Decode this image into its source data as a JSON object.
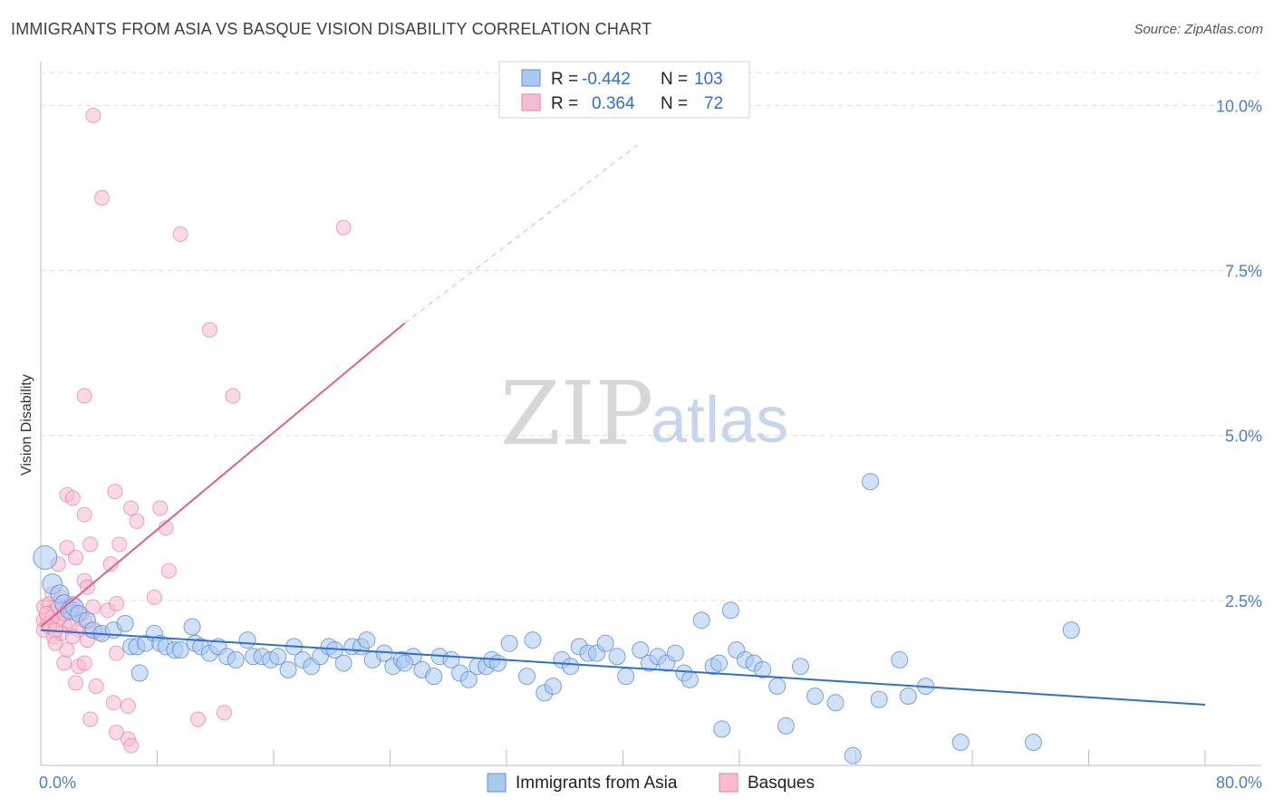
{
  "title": "IMMIGRANTS FROM ASIA VS BASQUE VISION DISABILITY CORRELATION CHART",
  "source": "Source: ZipAtlas.com",
  "watermark": {
    "zip": "ZIP",
    "atlas": "atlas"
  },
  "colors": {
    "blue_fill": "#a9c8f2",
    "blue_stroke": "#5a8fd8",
    "blue_line": "#2e6fd0",
    "pink_fill": "#f7bcd0",
    "pink_stroke": "#e7809f",
    "pink_line": "#e0608a",
    "grid": "#dcdcdc",
    "axis_text": "#4a7fcf"
  },
  "legend": {
    "rows": [
      {
        "r_label": "R =",
        "r_value": "-0.442",
        "n_label": "N =",
        "n_value": "103",
        "series": "blue"
      },
      {
        "r_label": "R =",
        "r_value": "0.364",
        "n_label": "N =",
        "n_value": "72",
        "series": "pink"
      }
    ]
  },
  "chart_data": {
    "type": "scatter",
    "title": "IMMIGRANTS FROM ASIA VS BASQUE VISION DISABILITY CORRELATION CHART",
    "xlabel": "",
    "ylabel": "Vision Disability",
    "xlim": [
      0,
      80
    ],
    "ylim": [
      0,
      10.5
    ],
    "x_tick_labels": [
      "0.0%",
      "80.0%"
    ],
    "y_ticks": [
      2.5,
      5.0,
      7.5,
      10.0
    ],
    "y_tick_labels": [
      "2.5%",
      "5.0%",
      "7.5%",
      "10.0%"
    ],
    "grid": true,
    "legend_position": "top-center",
    "series": [
      {
        "name": "Immigrants from Asia",
        "color": "blue",
        "r": -0.442,
        "n": 103,
        "trend": {
          "x0": 0,
          "y0": 2.05,
          "x1": 80,
          "y1": 0.92
        },
        "points": [
          [
            0.3,
            3.15
          ],
          [
            0.8,
            2.75
          ],
          [
            1.3,
            2.6
          ],
          [
            1.6,
            2.45
          ],
          [
            2.0,
            2.35
          ],
          [
            2.3,
            2.4
          ],
          [
            2.6,
            2.3
          ],
          [
            3.2,
            2.2
          ],
          [
            3.6,
            2.05
          ],
          [
            4.2,
            2.0
          ],
          [
            5.0,
            2.05
          ],
          [
            5.8,
            2.15
          ],
          [
            6.2,
            1.8
          ],
          [
            6.6,
            1.8
          ],
          [
            7.2,
            1.85
          ],
          [
            7.8,
            2.0
          ],
          [
            8.2,
            1.85
          ],
          [
            8.6,
            1.8
          ],
          [
            9.2,
            1.75
          ],
          [
            9.6,
            1.75
          ],
          [
            10.4,
            2.1
          ],
          [
            10.6,
            1.85
          ],
          [
            11.0,
            1.8
          ],
          [
            11.6,
            1.7
          ],
          [
            12.2,
            1.8
          ],
          [
            12.8,
            1.65
          ],
          [
            13.4,
            1.6
          ],
          [
            14.2,
            1.9
          ],
          [
            14.6,
            1.65
          ],
          [
            15.2,
            1.65
          ],
          [
            15.8,
            1.6
          ],
          [
            16.3,
            1.65
          ],
          [
            17.0,
            1.45
          ],
          [
            17.4,
            1.8
          ],
          [
            18.0,
            1.6
          ],
          [
            18.6,
            1.5
          ],
          [
            19.2,
            1.65
          ],
          [
            19.8,
            1.8
          ],
          [
            20.2,
            1.75
          ],
          [
            20.8,
            1.55
          ],
          [
            21.4,
            1.8
          ],
          [
            22.0,
            1.8
          ],
          [
            22.4,
            1.9
          ],
          [
            22.8,
            1.6
          ],
          [
            23.6,
            1.7
          ],
          [
            24.2,
            1.5
          ],
          [
            24.8,
            1.6
          ],
          [
            25.6,
            1.65
          ],
          [
            26.2,
            1.45
          ],
          [
            27.0,
            1.35
          ],
          [
            27.4,
            1.65
          ],
          [
            28.2,
            1.6
          ],
          [
            28.8,
            1.4
          ],
          [
            29.4,
            1.3
          ],
          [
            30.0,
            1.5
          ],
          [
            30.6,
            1.5
          ],
          [
            31.0,
            1.6
          ],
          [
            31.4,
            1.55
          ],
          [
            32.2,
            1.85
          ],
          [
            33.4,
            1.35
          ],
          [
            33.8,
            1.9
          ],
          [
            34.6,
            1.1
          ],
          [
            35.2,
            1.2
          ],
          [
            35.8,
            1.6
          ],
          [
            36.4,
            1.5
          ],
          [
            37.0,
            1.8
          ],
          [
            37.6,
            1.7
          ],
          [
            38.2,
            1.7
          ],
          [
            38.8,
            1.85
          ],
          [
            39.6,
            1.65
          ],
          [
            40.2,
            1.35
          ],
          [
            41.2,
            1.75
          ],
          [
            41.8,
            1.55
          ],
          [
            42.4,
            1.65
          ],
          [
            43.0,
            1.55
          ],
          [
            43.6,
            1.7
          ],
          [
            44.2,
            1.4
          ],
          [
            44.6,
            1.3
          ],
          [
            45.4,
            2.2
          ],
          [
            46.2,
            1.5
          ],
          [
            46.6,
            1.55
          ],
          [
            47.4,
            2.35
          ],
          [
            47.8,
            1.75
          ],
          [
            48.4,
            1.6
          ],
          [
            49.0,
            1.55
          ],
          [
            49.6,
            1.45
          ],
          [
            50.6,
            1.2
          ],
          [
            51.2,
            0.6
          ],
          [
            52.2,
            1.5
          ],
          [
            53.2,
            1.05
          ],
          [
            54.6,
            0.95
          ],
          [
            55.8,
            0.15
          ],
          [
            57.6,
            1.0
          ],
          [
            59.0,
            1.6
          ],
          [
            59.6,
            1.05
          ],
          [
            60.8,
            1.2
          ],
          [
            63.2,
            0.35
          ],
          [
            68.2,
            0.35
          ],
          [
            57.0,
            4.3
          ],
          [
            70.8,
            2.05
          ],
          [
            6.8,
            1.4
          ],
          [
            25.0,
            1.55
          ],
          [
            46.8,
            0.55
          ]
        ]
      },
      {
        "name": "Basques",
        "color": "pink",
        "r": 0.364,
        "n": 72,
        "trend": {
          "x0": 0,
          "y0": 2.1,
          "x1": 25,
          "y1": 6.7
        },
        "trend_extension": {
          "x0": 25,
          "y0": 6.7,
          "x1": 41,
          "y1": 9.4
        },
        "points": [
          [
            3.6,
            9.85
          ],
          [
            4.2,
            8.6
          ],
          [
            9.6,
            8.05
          ],
          [
            20.8,
            8.15
          ],
          [
            11.6,
            6.6
          ],
          [
            3.0,
            5.6
          ],
          [
            13.2,
            5.6
          ],
          [
            1.8,
            4.1
          ],
          [
            2.2,
            4.05
          ],
          [
            5.1,
            4.15
          ],
          [
            6.2,
            3.9
          ],
          [
            3.0,
            3.8
          ],
          [
            8.2,
            3.9
          ],
          [
            6.6,
            3.7
          ],
          [
            8.6,
            3.6
          ],
          [
            1.8,
            3.3
          ],
          [
            3.4,
            3.35
          ],
          [
            5.4,
            3.35
          ],
          [
            1.2,
            3.05
          ],
          [
            2.4,
            3.15
          ],
          [
            4.8,
            3.05
          ],
          [
            8.8,
            2.95
          ],
          [
            3.0,
            2.8
          ],
          [
            3.2,
            2.7
          ],
          [
            1.4,
            2.55
          ],
          [
            7.8,
            2.55
          ],
          [
            0.2,
            2.4
          ],
          [
            0.6,
            2.45
          ],
          [
            1.0,
            2.35
          ],
          [
            2.2,
            2.45
          ],
          [
            2.8,
            2.3
          ],
          [
            3.6,
            2.4
          ],
          [
            4.6,
            2.35
          ],
          [
            5.2,
            2.45
          ],
          [
            0.2,
            2.2
          ],
          [
            0.5,
            2.15
          ],
          [
            0.8,
            2.25
          ],
          [
            1.2,
            2.2
          ],
          [
            1.6,
            2.15
          ],
          [
            2.0,
            2.1
          ],
          [
            2.6,
            2.05
          ],
          [
            3.0,
            2.2
          ],
          [
            0.2,
            2.05
          ],
          [
            0.6,
            2.1
          ],
          [
            0.9,
            1.95
          ],
          [
            1.4,
            2.0
          ],
          [
            2.2,
            1.95
          ],
          [
            3.4,
            2.05
          ],
          [
            4.0,
            2.0
          ],
          [
            1.0,
            1.85
          ],
          [
            1.8,
            1.75
          ],
          [
            3.2,
            1.9
          ],
          [
            5.2,
            1.7
          ],
          [
            1.6,
            1.55
          ],
          [
            2.6,
            1.5
          ],
          [
            3.0,
            1.55
          ],
          [
            2.4,
            1.25
          ],
          [
            3.8,
            1.2
          ],
          [
            5.0,
            0.95
          ],
          [
            6.0,
            0.9
          ],
          [
            3.4,
            0.7
          ],
          [
            10.8,
            0.7
          ],
          [
            12.6,
            0.8
          ],
          [
            5.2,
            0.5
          ],
          [
            6.0,
            0.4
          ],
          [
            6.2,
            0.3
          ],
          [
            0.4,
            2.3
          ],
          [
            0.8,
            2.6
          ],
          [
            1.2,
            2.4
          ],
          [
            1.6,
            2.3
          ],
          [
            2.0,
            2.35
          ],
          [
            1.0,
            2.05
          ]
        ]
      }
    ]
  },
  "bottom_legend": [
    {
      "label": "Immigrants from Asia",
      "series": "blue"
    },
    {
      "label": "Basques",
      "series": "pink"
    }
  ]
}
